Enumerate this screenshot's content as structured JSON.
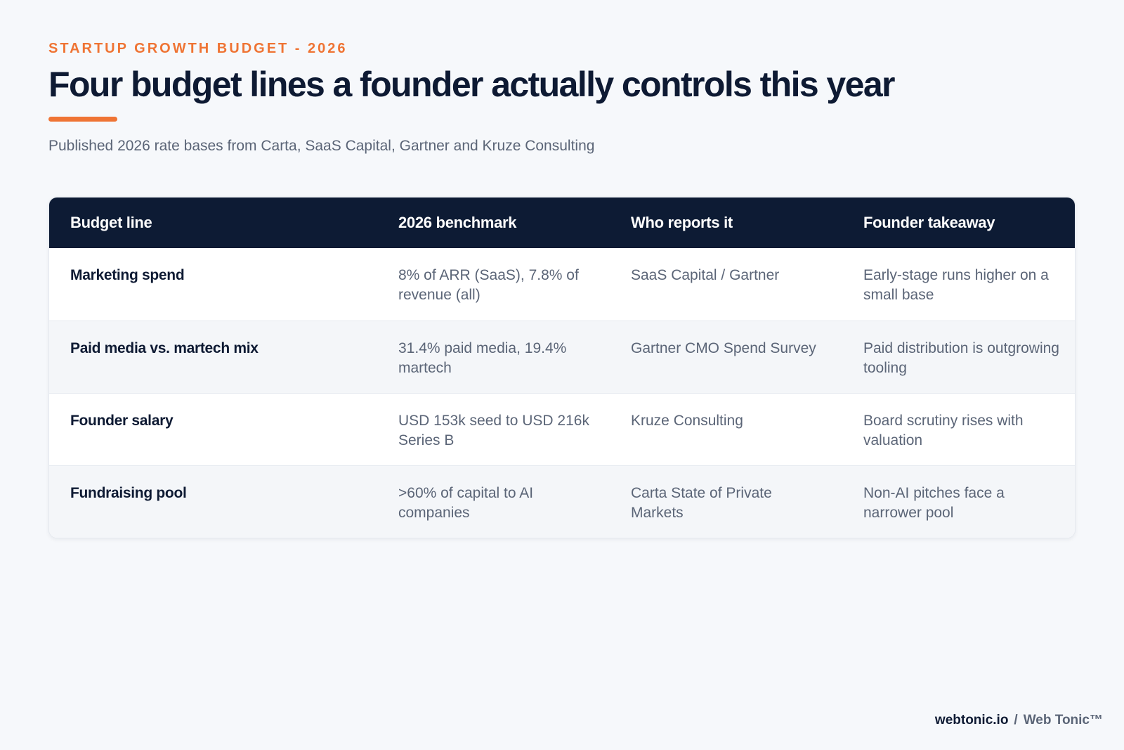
{
  "header": {
    "eyebrow": "STARTUP GROWTH BUDGET - 2026",
    "title": "Four budget lines a founder actually controls this year",
    "subtitle": "Published 2026 rate bases from Carta, SaaS Capital, Gartner and Kruze Consulting"
  },
  "colors": {
    "accent": "#ef7434",
    "header_bg": "#0d1b34",
    "page_bg": "#f6f8fb"
  },
  "table": {
    "columns": [
      "Budget line",
      "2026 benchmark",
      "Who reports it",
      "Founder takeaway"
    ],
    "rows": [
      {
        "line": "Marketing spend",
        "benchmark": "8% of ARR (SaaS), 7.8% of revenue (all)",
        "source": "SaaS Capital / Gartner",
        "takeaway": "Early-stage runs higher on a small base"
      },
      {
        "line": "Paid media vs. martech mix",
        "benchmark": "31.4% paid media, 19.4% martech",
        "source": "Gartner CMO Spend Survey",
        "takeaway": "Paid distribution is outgrowing tooling"
      },
      {
        "line": "Founder salary",
        "benchmark": "USD 153k seed to USD 216k Series B",
        "source": "Kruze Consulting",
        "takeaway": "Board scrutiny rises with valuation"
      },
      {
        "line": "Fundraising pool",
        "benchmark": ">60% of capital to AI companies",
        "source": "Carta State of Private Markets",
        "takeaway": "Non-AI pitches face a narrower pool"
      }
    ]
  },
  "footer": {
    "domain": "webtonic.io",
    "separator": "/",
    "brand": "Web Tonic™"
  }
}
